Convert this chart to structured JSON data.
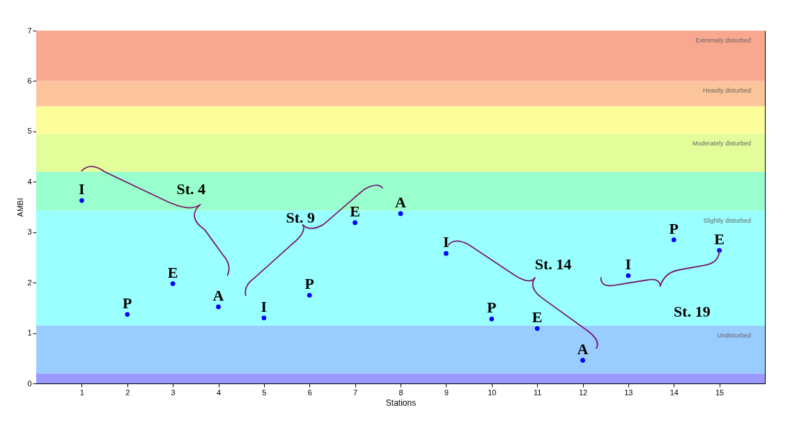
{
  "chart_data": {
    "type": "scatter",
    "xlabel": "Stations",
    "ylabel": "AMBI",
    "x": [
      1,
      2,
      3,
      4,
      5,
      6,
      7,
      8,
      9,
      10,
      11,
      12,
      13,
      14,
      15
    ],
    "series": [
      {
        "color": "#0000ff",
        "values": [
          3.63,
          1.37,
          1.98,
          1.52,
          1.3,
          1.75,
          3.19,
          3.37,
          2.58,
          1.28,
          1.09,
          0.46,
          2.14,
          2.85,
          2.64
        ],
        "value_labels": [
          "I",
          "P",
          "E",
          "A",
          "I",
          "P",
          "E",
          "A",
          "I",
          "P",
          "E",
          "A",
          "I",
          "P",
          "E"
        ]
      }
    ],
    "marker": "circle",
    "xlim": [
      0,
      16
    ],
    "ylim": [
      0,
      7
    ],
    "xticks": [
      1,
      2,
      3,
      4,
      5,
      6,
      7,
      8,
      9,
      10,
      11,
      12,
      13,
      14,
      15
    ],
    "yticks": [
      0,
      1,
      2,
      3,
      4,
      5,
      6,
      7
    ],
    "grid": false,
    "bands": [
      {
        "axis": "y",
        "from": 0,
        "to": 0.2,
        "color": "#9999ff"
      },
      {
        "axis": "y",
        "from": 0.2,
        "to": 1.15,
        "color": "#99ccff",
        "label": "Undisturbed"
      },
      {
        "axis": "y",
        "from": 1.15,
        "to": 3.43,
        "color": "#99ffff",
        "label": "Slightly disturbed"
      },
      {
        "axis": "y",
        "from": 3.43,
        "to": 4.2,
        "color": "#99ffcc"
      },
      {
        "axis": "y",
        "from": 4.2,
        "to": 4.95,
        "color": "#e2fd99",
        "label": "Moderately disturbed"
      },
      {
        "axis": "y",
        "from": 4.95,
        "to": 5.5,
        "color": "#fdfd9a"
      },
      {
        "axis": "y",
        "from": 5.5,
        "to": 6,
        "color": "#fcc49a",
        "label": "Heavily disturbed"
      },
      {
        "axis": "y",
        "from": 6,
        "to": 7,
        "color": "#f9a890",
        "label": "Extremely disturbed"
      }
    ],
    "annotations": [
      "St. 4",
      "St. 9",
      "St. 14",
      "St. 19"
    ]
  }
}
